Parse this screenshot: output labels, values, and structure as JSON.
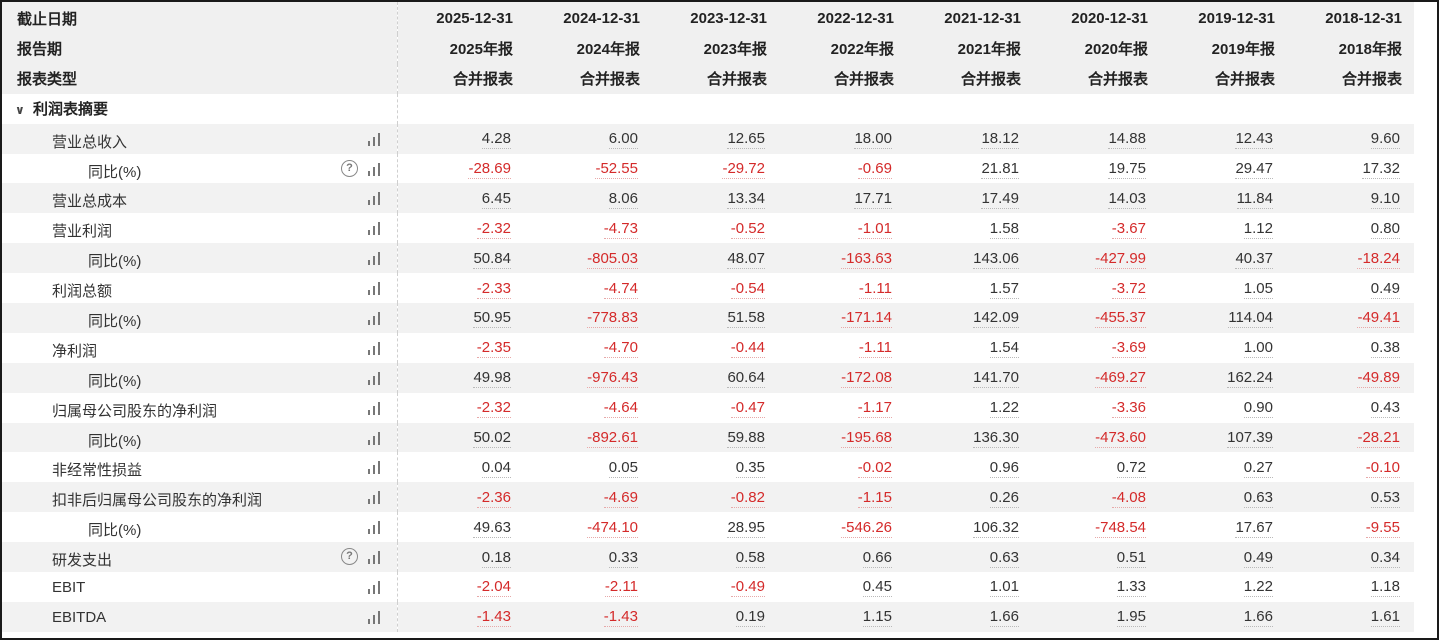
{
  "header": {
    "row_labels": [
      "截止日期",
      "报告期",
      "报表类型"
    ],
    "columns": [
      {
        "date": "2025-12-31",
        "period": "2025年报",
        "type": "合并报表"
      },
      {
        "date": "2024-12-31",
        "period": "2024年报",
        "type": "合并报表"
      },
      {
        "date": "2023-12-31",
        "period": "2023年报",
        "type": "合并报表"
      },
      {
        "date": "2022-12-31",
        "period": "2022年报",
        "type": "合并报表"
      },
      {
        "date": "2021-12-31",
        "period": "2021年报",
        "type": "合并报表"
      },
      {
        "date": "2020-12-31",
        "period": "2020年报",
        "type": "合并报表"
      },
      {
        "date": "2019-12-31",
        "period": "2019年报",
        "type": "合并报表"
      },
      {
        "date": "2018-12-31",
        "period": "2018年报",
        "type": "合并报表"
      }
    ]
  },
  "section": {
    "title": "利润表摘要",
    "expanded": true
  },
  "rows": [
    {
      "label": "营业总收入",
      "indent": 1,
      "help": false,
      "values": [
        "4.28",
        "6.00",
        "12.65",
        "18.00",
        "18.12",
        "14.88",
        "12.43",
        "9.60"
      ]
    },
    {
      "label": "同比(%)",
      "indent": 2,
      "help": true,
      "values": [
        "-28.69",
        "-52.55",
        "-29.72",
        "-0.69",
        "21.81",
        "19.75",
        "29.47",
        "17.32"
      ]
    },
    {
      "label": "营业总成本",
      "indent": 1,
      "help": false,
      "values": [
        "6.45",
        "8.06",
        "13.34",
        "17.71",
        "17.49",
        "14.03",
        "11.84",
        "9.10"
      ]
    },
    {
      "label": "营业利润",
      "indent": 1,
      "help": false,
      "values": [
        "-2.32",
        "-4.73",
        "-0.52",
        "-1.01",
        "1.58",
        "-3.67",
        "1.12",
        "0.80"
      ]
    },
    {
      "label": "同比(%)",
      "indent": 2,
      "help": false,
      "values": [
        "50.84",
        "-805.03",
        "48.07",
        "-163.63",
        "143.06",
        "-427.99",
        "40.37",
        "-18.24"
      ]
    },
    {
      "label": "利润总额",
      "indent": 1,
      "help": false,
      "values": [
        "-2.33",
        "-4.74",
        "-0.54",
        "-1.11",
        "1.57",
        "-3.72",
        "1.05",
        "0.49"
      ]
    },
    {
      "label": "同比(%)",
      "indent": 2,
      "help": false,
      "values": [
        "50.95",
        "-778.83",
        "51.58",
        "-171.14",
        "142.09",
        "-455.37",
        "114.04",
        "-49.41"
      ]
    },
    {
      "label": "净利润",
      "indent": 1,
      "help": false,
      "values": [
        "-2.35",
        "-4.70",
        "-0.44",
        "-1.11",
        "1.54",
        "-3.69",
        "1.00",
        "0.38"
      ]
    },
    {
      "label": "同比(%)",
      "indent": 2,
      "help": false,
      "values": [
        "49.98",
        "-976.43",
        "60.64",
        "-172.08",
        "141.70",
        "-469.27",
        "162.24",
        "-49.89"
      ]
    },
    {
      "label": "归属母公司股东的净利润",
      "indent": 1,
      "help": false,
      "values": [
        "-2.32",
        "-4.64",
        "-0.47",
        "-1.17",
        "1.22",
        "-3.36",
        "0.90",
        "0.43"
      ]
    },
    {
      "label": "同比(%)",
      "indent": 2,
      "help": false,
      "values": [
        "50.02",
        "-892.61",
        "59.88",
        "-195.68",
        "136.30",
        "-473.60",
        "107.39",
        "-28.21"
      ]
    },
    {
      "label": "非经常性损益",
      "indent": 1,
      "help": false,
      "values": [
        "0.04",
        "0.05",
        "0.35",
        "-0.02",
        "0.96",
        "0.72",
        "0.27",
        "-0.10"
      ]
    },
    {
      "label": "扣非后归属母公司股东的净利润",
      "indent": 1,
      "help": false,
      "values": [
        "-2.36",
        "-4.69",
        "-0.82",
        "-1.15",
        "0.26",
        "-4.08",
        "0.63",
        "0.53"
      ]
    },
    {
      "label": "同比(%)",
      "indent": 2,
      "help": false,
      "values": [
        "49.63",
        "-474.10",
        "28.95",
        "-546.26",
        "106.32",
        "-748.54",
        "17.67",
        "-9.55"
      ]
    },
    {
      "label": "研发支出",
      "indent": 1,
      "help": true,
      "values": [
        "0.18",
        "0.33",
        "0.58",
        "0.66",
        "0.63",
        "0.51",
        "0.49",
        "0.34"
      ]
    },
    {
      "label": "EBIT",
      "indent": 1,
      "help": false,
      "values": [
        "-2.04",
        "-2.11",
        "-0.49",
        "0.45",
        "1.01",
        "1.33",
        "1.22",
        "1.18"
      ]
    },
    {
      "label": "EBITDA",
      "indent": 1,
      "help": false,
      "values": [
        "-1.43",
        "-1.43",
        "0.19",
        "1.15",
        "1.66",
        "1.95",
        "1.66",
        "1.61"
      ]
    }
  ],
  "colors": {
    "negative": "#d42a2a",
    "positive": "#333333",
    "header_bg": "#f0f0f0",
    "stripe_bg": "#f2f2f2"
  },
  "icons": {
    "chart": "bar-chart-icon",
    "help": "help-circle-icon",
    "chevron": "chevron-down-icon",
    "help_glyph": "?",
    "chevron_glyph": "∨"
  }
}
